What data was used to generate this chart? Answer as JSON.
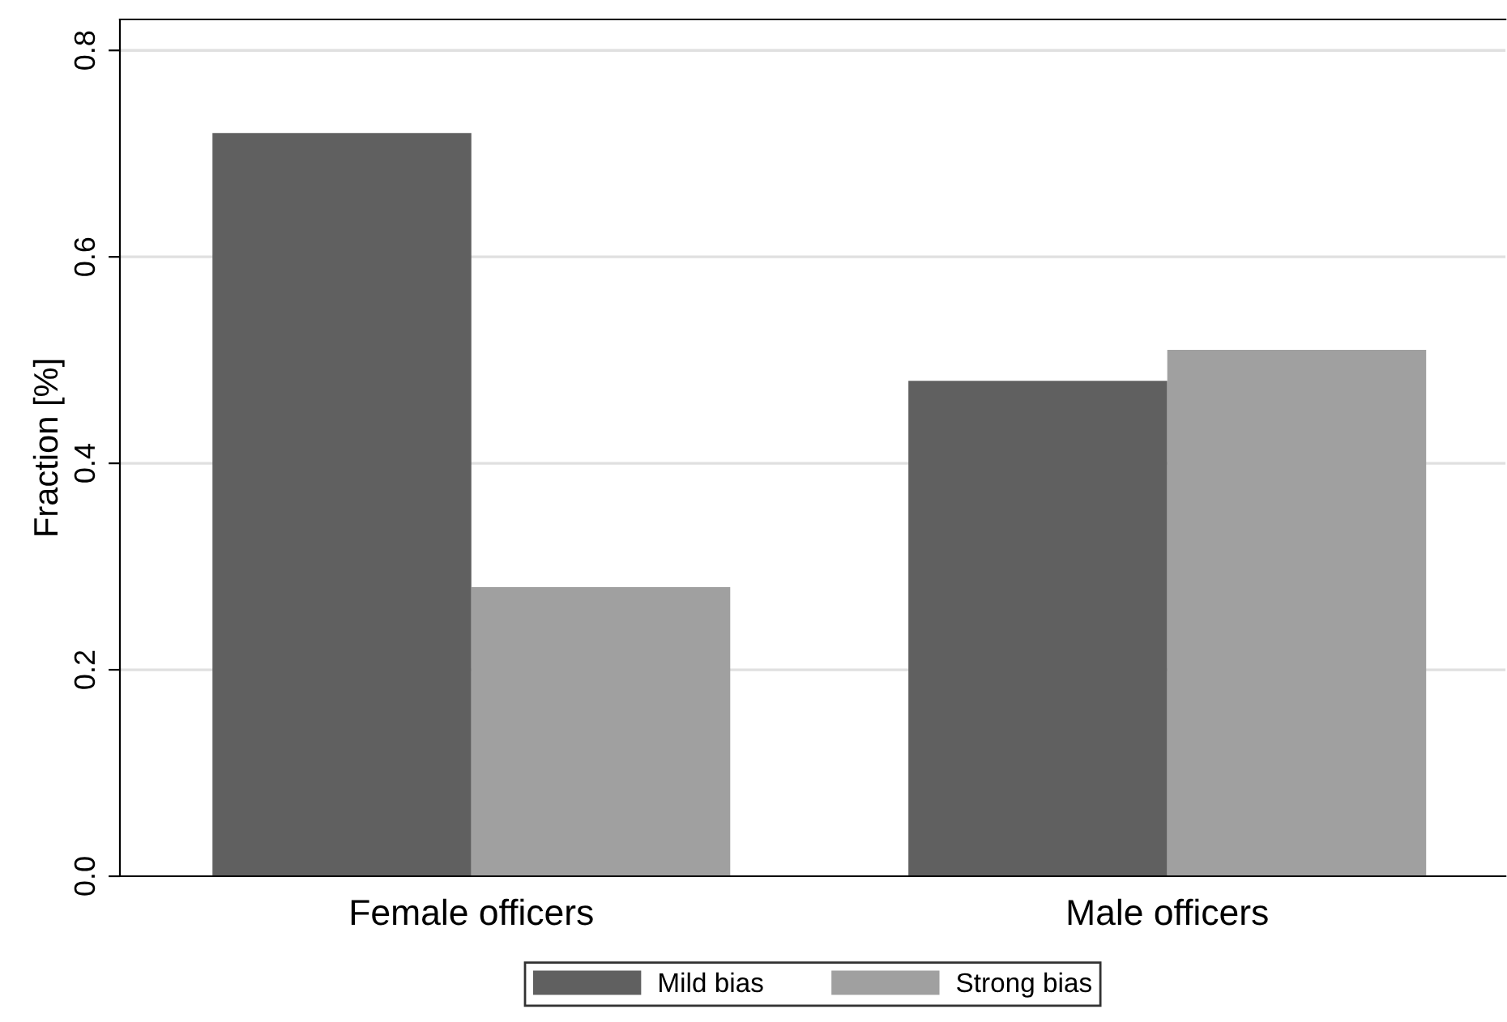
{
  "chart_data": {
    "type": "bar",
    "ylabel": "Fraction [%]",
    "categories": [
      "Female officers",
      "Male officers"
    ],
    "series": [
      {
        "name": "Mild bias",
        "color": "#606060",
        "values": [
          0.72,
          0.48
        ]
      },
      {
        "name": "Strong bias",
        "color": "#a0a0a0",
        "values": [
          0.28,
          0.51
        ]
      }
    ],
    "ylim": [
      0,
      0.83
    ],
    "yticks": [
      {
        "value": 0,
        "label": "0.0"
      },
      {
        "value": 0.2,
        "label": "0.2"
      },
      {
        "value": 0.4,
        "label": "0.4"
      },
      {
        "value": 0.6,
        "label": "0.6"
      },
      {
        "value": 0.8,
        "label": "0.8"
      }
    ],
    "grid": "y",
    "legend": "bottom"
  }
}
